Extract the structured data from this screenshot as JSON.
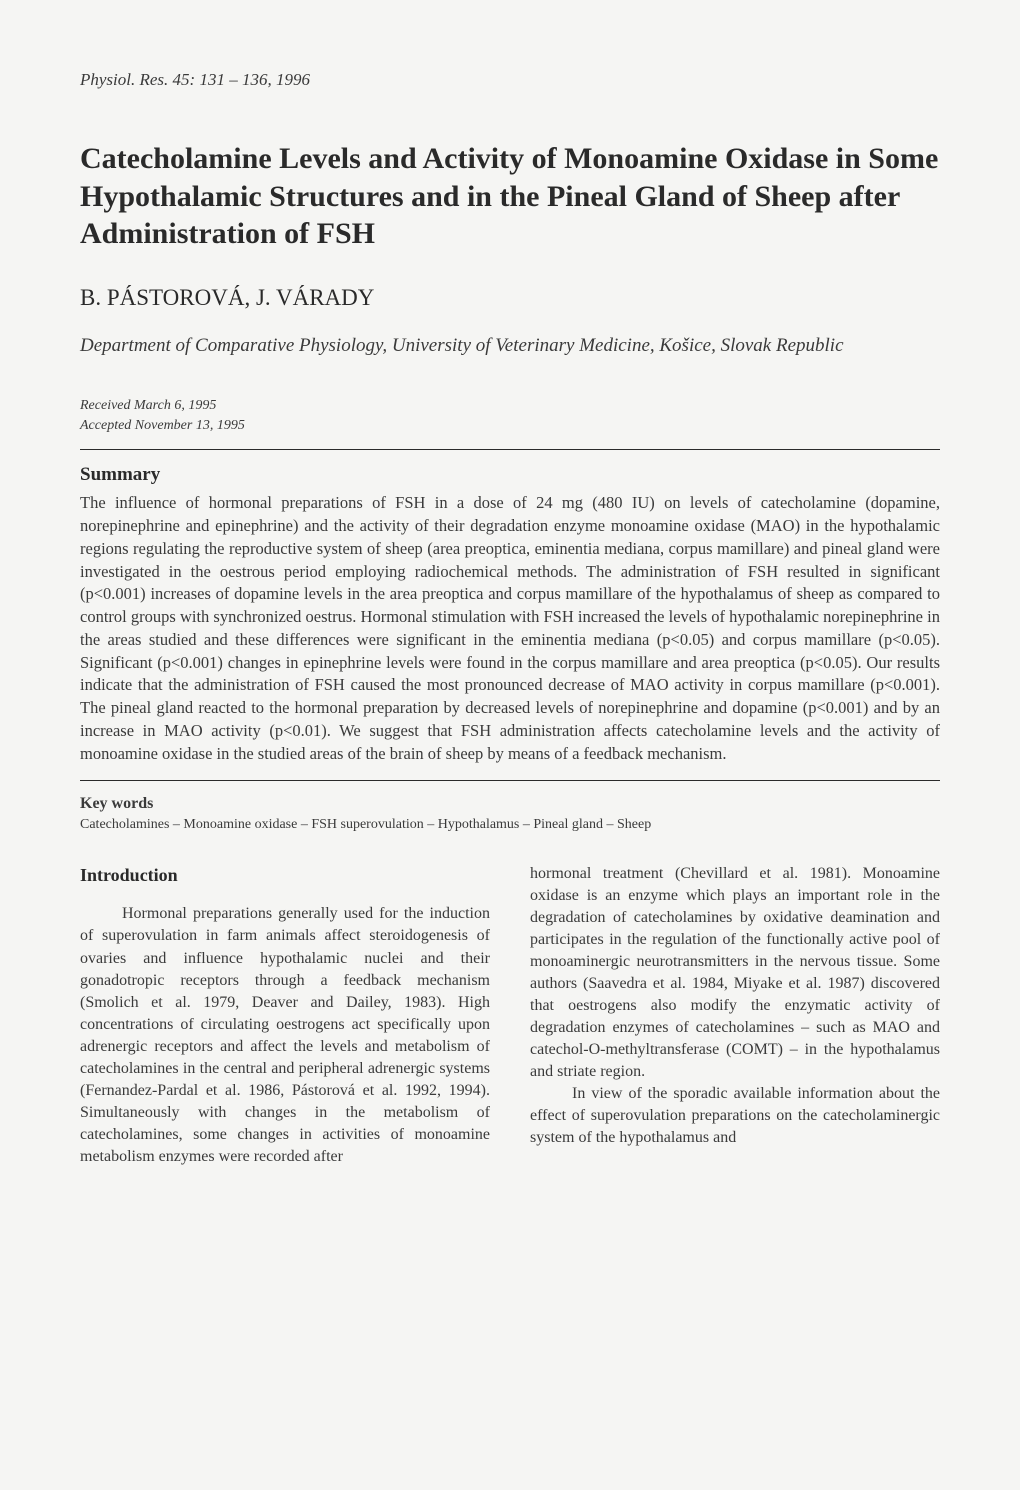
{
  "journal_ref": "Physiol. Res. 45: 131 – 136, 1996",
  "title": "Catecholamine Levels and Activity of Monoamine Oxidase in Some Hypothalamic Structures and in the Pineal Gland of Sheep after Administration of FSH",
  "authors": "B. PÁSTOROVÁ, J. VÁRADY",
  "affiliation": "Department of Comparative Physiology, University of Veterinary Medicine, Košice, Slovak Republic",
  "received": "Received March 6, 1995",
  "accepted": "Accepted November 13, 1995",
  "summary_heading": "Summary",
  "summary": "The influence of hormonal preparations of FSH in a dose of 24 mg (480 IU) on levels of catecholamine (dopamine, norepinephrine and epinephrine) and the activity of their degradation enzyme monoamine oxidase (MAO) in the hypothalamic regions regulating the reproductive system of sheep (area preoptica, eminentia mediana, corpus mamillare) and pineal gland were investigated in the oestrous period employing radiochemical methods. The administration of FSH resulted in significant (p<0.001) increases of dopamine levels in the area preoptica and corpus mamillare of the hypothalamus of sheep as compared to control groups with synchronized oestrus. Hormonal stimulation with FSH increased the levels of hypothalamic norepinephrine in the areas studied and these differences were significant in the eminentia mediana (p<0.05) and corpus mamillare (p<0.05). Significant (p<0.001) changes in epinephrine levels were found in the corpus mamillare and area preoptica (p<0.05). Our results indicate that the administration of FSH caused the most pronounced decrease of MAO activity in corpus mamillare (p<0.001). The pineal gland reacted to the hormonal preparation by decreased levels of norepinephrine and dopamine (p<0.001) and by an increase in MAO activity (p<0.01). We suggest that FSH administration affects catecholamine levels and the activity of monoamine oxidase in the studied areas of the brain of sheep by means of a feedback mechanism.",
  "keywords_heading": "Key words",
  "keywords": "Catecholamines – Monoamine oxidase – FSH superovulation – Hypothalamus – Pineal gland – Sheep",
  "intro_heading": "Introduction",
  "col_left_p1": "Hormonal preparations generally used for the induction of superovulation in farm animals affect steroidogenesis of ovaries and influence hypothalamic nuclei and their gonadotropic receptors through a feedback mechanism (Smolich et al. 1979, Deaver and Dailey, 1983). High concentrations of circulating oestrogens act specifically upon adrenergic receptors and affect the levels and metabolism of catecholamines in the central and peripheral adrenergic systems (Fernandez-Pardal et al. 1986, Pástorová et al. 1992, 1994). Simultaneously with changes in the metabolism of catecholamines, some changes in activities of monoamine metabolism enzymes were recorded after",
  "col_right_p1": "hormonal treatment (Chevillard et al. 1981). Monoamine oxidase is an enzyme which plays an important role in the degradation of catecholamines by oxidative deamination and participates in the regulation of the functionally active pool of monoaminergic neurotransmitters in the nervous tissue. Some authors (Saavedra et al. 1984, Miyake et al. 1987) discovered that oestrogens also modify the enzymatic activity of degradation enzymes of catecholamines – such as MAO and catechol-O-methyltransferase (COMT) – in the hypothalamus and striate region.",
  "col_right_p2": "In view of the sporadic available information about the effect of superovulation preparations on the catecholaminergic system of the hypothalamus and"
}
